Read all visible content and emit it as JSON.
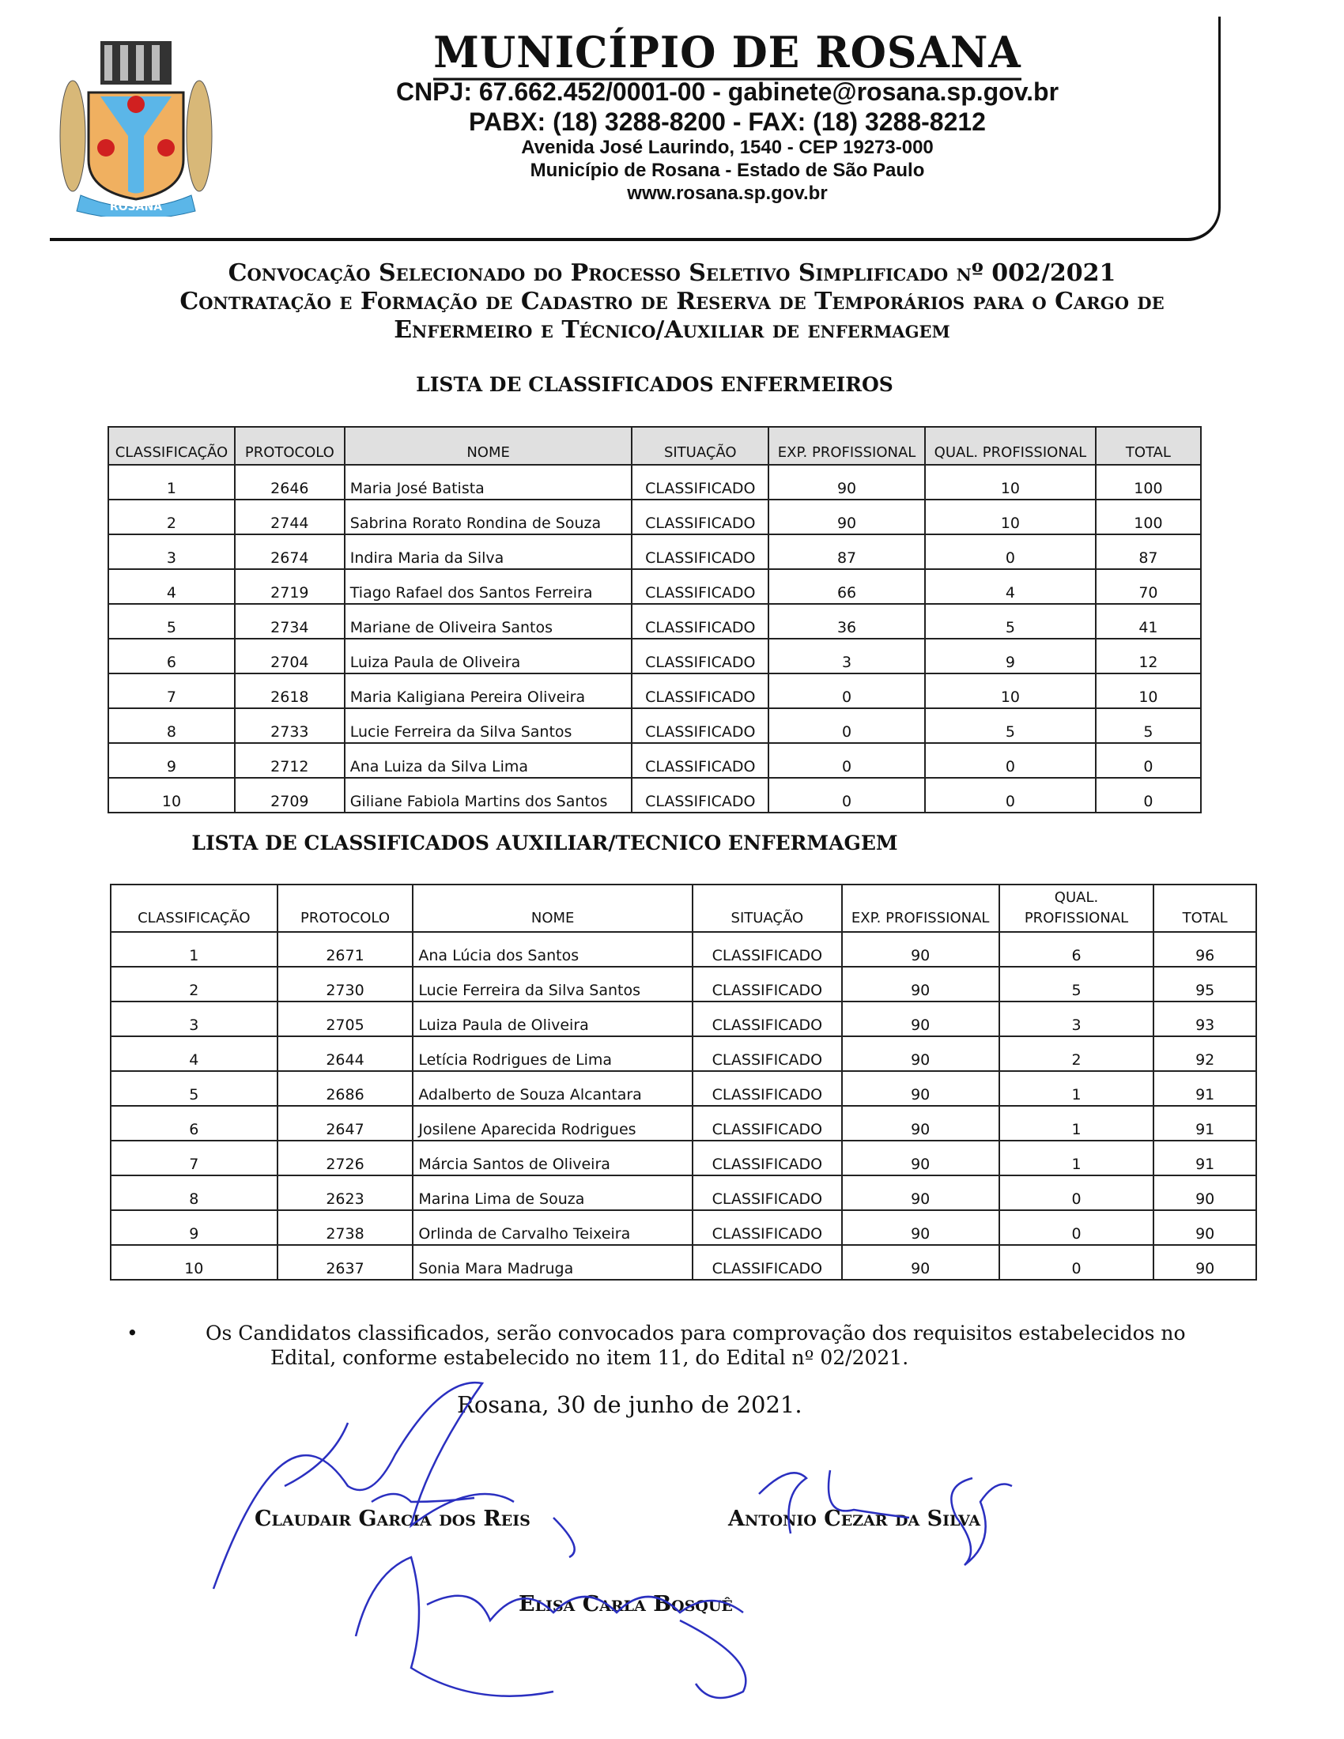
{
  "header": {
    "title": "MUNICÍPIO DE ROSANA",
    "cnpj_line": "CNPJ: 67.662.452/0001-00 - gabinete@rosana.sp.gov.br",
    "phone_line": "PABX: (18) 3288-8200 - FAX: (18) 3288-8212",
    "address_line": "Avenida José Laurindo, 1540 - CEP 19273-000",
    "city_line": "Município de Rosana - Estado de São Paulo",
    "website": "www.rosana.sp.gov.br",
    "logo_text": "ROSANA"
  },
  "document": {
    "title_lines": [
      "Convocação Selecionado do Processo Seletivo Simplificado nº 002/2021",
      "Contratação e Formação de Cadastro de Reserva de Temporários para o Cargo de",
      "Enfermeiro e Técnico/Auxiliar de enfermagem"
    ]
  },
  "table_enfermeiros": {
    "title": "LISTA DE CLASSIFICADOS ENFERMEIROS",
    "columns": [
      "CLASSIFICAÇÃO",
      "PROTOCOLO",
      "NOME",
      "SITUAÇÃO",
      "EXP. PROFISSIONAL",
      "QUAL. PROFISSIONAL",
      "TOTAL"
    ],
    "rows": [
      [
        "1",
        "2646",
        "Maria José Batista",
        "CLASSIFICADO",
        "90",
        "10",
        "100"
      ],
      [
        "2",
        "2744",
        "Sabrina Rorato Rondina de Souza",
        "CLASSIFICADO",
        "90",
        "10",
        "100"
      ],
      [
        "3",
        "2674",
        "Indira Maria da Silva",
        "CLASSIFICADO",
        "87",
        "0",
        "87"
      ],
      [
        "4",
        "2719",
        "Tiago Rafael dos Santos Ferreira",
        "CLASSIFICADO",
        "66",
        "4",
        "70"
      ],
      [
        "5",
        "2734",
        "Mariane de Oliveira Santos",
        "CLASSIFICADO",
        "36",
        "5",
        "41"
      ],
      [
        "6",
        "2704",
        "Luiza Paula de Oliveira",
        "CLASSIFICADO",
        "3",
        "9",
        "12"
      ],
      [
        "7",
        "2618",
        "Maria Kaligiana Pereira Oliveira",
        "CLASSIFICADO",
        "0",
        "10",
        "10"
      ],
      [
        "8",
        "2733",
        "Lucie Ferreira da Silva Santos",
        "CLASSIFICADO",
        "0",
        "5",
        "5"
      ],
      [
        "9",
        "2712",
        "Ana Luiza da Silva Lima",
        "CLASSIFICADO",
        "0",
        "0",
        "0"
      ],
      [
        "10",
        "2709",
        "Giliane Fabiola Martins dos Santos",
        "CLASSIFICADO",
        "0",
        "0",
        "0"
      ]
    ]
  },
  "table_auxiliar": {
    "title": "LISTA DE CLASSIFICADOS AUXILIAR/TECNICO ENFERMAGEM",
    "columns": [
      "CLASSIFICAÇÃO",
      "PROTOCOLO",
      "NOME",
      "SITUAÇÃO",
      "EXP. PROFISSIONAL",
      "QUAL. PROFISSIONAL",
      "TOTAL"
    ],
    "rows": [
      [
        "1",
        "2671",
        "Ana Lúcia dos Santos",
        "CLASSIFICADO",
        "90",
        "6",
        "96"
      ],
      [
        "2",
        "2730",
        "Lucie Ferreira da Silva Santos",
        "CLASSIFICADO",
        "90",
        "5",
        "95"
      ],
      [
        "3",
        "2705",
        "Luiza Paula de Oliveira",
        "CLASSIFICADO",
        "90",
        "3",
        "93"
      ],
      [
        "4",
        "2644",
        "Letícia Rodrigues de Lima",
        "CLASSIFICADO",
        "90",
        "2",
        "92"
      ],
      [
        "5",
        "2686",
        "Adalberto de Souza Alcantara",
        "CLASSIFICADO",
        "90",
        "1",
        "91"
      ],
      [
        "6",
        "2647",
        "Josilene Aparecida Rodrigues",
        "CLASSIFICADO",
        "90",
        "1",
        "91"
      ],
      [
        "7",
        "2726",
        "Márcia Santos de Oliveira",
        "CLASSIFICADO",
        "90",
        "1",
        "91"
      ],
      [
        "8",
        "2623",
        "Marina Lima de Souza",
        "CLASSIFICADO",
        "90",
        "0",
        "90"
      ],
      [
        "9",
        "2738",
        "Orlinda de Carvalho Teixeira",
        "CLASSIFICADO",
        "90",
        "0",
        "90"
      ],
      [
        "10",
        "2637",
        "Sonia Mara Madruga",
        "CLASSIFICADO",
        "90",
        "0",
        "90"
      ]
    ]
  },
  "note": {
    "bullet": "•",
    "line1": "Os Candidatos classificados, serão convocados para comprovação dos requisitos estabelecidos no",
    "line2": "Edital, conforme estabelecido no item 11, do Edital nº 02/2021."
  },
  "date_line": "Rosana, 30 de junho de 2021.",
  "signatories": [
    "Claudair Garcia dos Reis",
    "Antonio Cezar da Silva",
    "Elisa Carla Bosquê"
  ],
  "colors": {
    "ink": "#111111",
    "signature": "#2a2fc0",
    "header_fill": "#e0e0e0"
  }
}
